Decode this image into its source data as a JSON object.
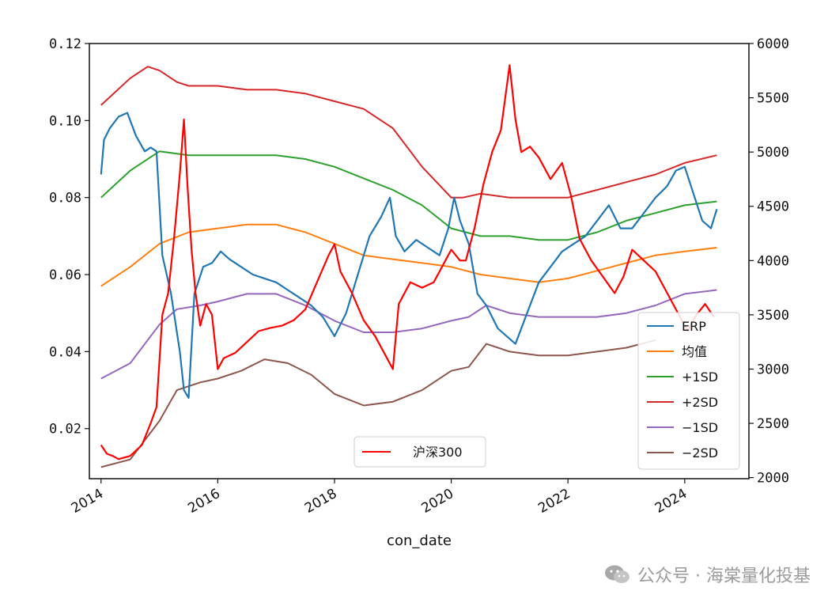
{
  "chart_data": {
    "type": "line",
    "xlabel": "con_date",
    "x_ticks": [
      "2014",
      "2016",
      "2018",
      "2020",
      "2022",
      "2024"
    ],
    "x_range": [
      2013.8,
      2025.1
    ],
    "y_left": {
      "range": [
        0.007,
        0.12
      ],
      "ticks": [
        "0.12",
        "0.10",
        "0.08",
        "0.06",
        "0.04",
        "0.02"
      ]
    },
    "y_right": {
      "range": [
        1990,
        6000
      ],
      "ticks": [
        "6000",
        "5500",
        "5000",
        "4500",
        "4000",
        "3500",
        "3000",
        "2500",
        "2000"
      ]
    },
    "series": [
      {
        "name": "ERP",
        "axis": "left",
        "color": "#1f77b4",
        "x": [
          2014.0,
          2014.05,
          2014.15,
          2014.3,
          2014.45,
          2014.6,
          2014.75,
          2014.85,
          2014.95,
          2015.05,
          2015.2,
          2015.35,
          2015.42,
          2015.5,
          2015.6,
          2015.75,
          2015.9,
          2016.05,
          2016.2,
          2016.4,
          2016.6,
          2016.8,
          2017.0,
          2017.2,
          2017.4,
          2017.6,
          2017.8,
          2018.0,
          2018.2,
          2018.4,
          2018.6,
          2018.8,
          2018.95,
          2019.05,
          2019.2,
          2019.4,
          2019.6,
          2019.8,
          2019.95,
          2020.05,
          2020.15,
          2020.3,
          2020.45,
          2020.6,
          2020.8,
          2020.95,
          2021.1,
          2021.3,
          2021.5,
          2021.7,
          2021.9,
          2022.1,
          2022.3,
          2022.5,
          2022.7,
          2022.9,
          2023.1,
          2023.3,
          2023.5,
          2023.7,
          2023.85,
          2024.0,
          2024.15,
          2024.3,
          2024.45,
          2024.55
        ],
        "values": [
          0.086,
          0.095,
          0.098,
          0.101,
          0.102,
          0.096,
          0.092,
          0.093,
          0.092,
          0.065,
          0.055,
          0.04,
          0.03,
          0.028,
          0.055,
          0.062,
          0.063,
          0.066,
          0.064,
          0.062,
          0.06,
          0.059,
          0.058,
          0.056,
          0.054,
          0.052,
          0.049,
          0.044,
          0.05,
          0.06,
          0.07,
          0.075,
          0.08,
          0.07,
          0.066,
          0.069,
          0.067,
          0.065,
          0.072,
          0.08,
          0.074,
          0.068,
          0.055,
          0.052,
          0.046,
          0.044,
          0.042,
          0.05,
          0.058,
          0.062,
          0.066,
          0.068,
          0.07,
          0.074,
          0.078,
          0.072,
          0.072,
          0.076,
          0.08,
          0.083,
          0.087,
          0.088,
          0.081,
          0.074,
          0.072,
          0.077
        ]
      },
      {
        "name": "均值",
        "axis": "left",
        "color": "#ff7f0e",
        "x": [
          2014.0,
          2014.5,
          2015.0,
          2015.5,
          2016.0,
          2016.5,
          2017.0,
          2017.5,
          2018.0,
          2018.5,
          2019.0,
          2019.5,
          2020.0,
          2020.5,
          2021.0,
          2021.5,
          2022.0,
          2022.5,
          2023.0,
          2023.5,
          2024.0,
          2024.55
        ],
        "values": [
          0.057,
          0.062,
          0.068,
          0.071,
          0.072,
          0.073,
          0.073,
          0.071,
          0.068,
          0.065,
          0.064,
          0.063,
          0.062,
          0.06,
          0.059,
          0.058,
          0.059,
          0.061,
          0.063,
          0.065,
          0.066,
          0.067
        ]
      },
      {
        "name": "+1SD",
        "axis": "left",
        "color": "#2ca02c",
        "x": [
          2014.0,
          2014.5,
          2015.0,
          2015.5,
          2016.0,
          2016.5,
          2017.0,
          2017.5,
          2018.0,
          2018.5,
          2019.0,
          2019.5,
          2020.0,
          2020.5,
          2021.0,
          2021.5,
          2022.0,
          2022.5,
          2023.0,
          2023.5,
          2024.0,
          2024.55
        ],
        "values": [
          0.08,
          0.087,
          0.092,
          0.091,
          0.091,
          0.091,
          0.091,
          0.09,
          0.088,
          0.085,
          0.082,
          0.078,
          0.072,
          0.07,
          0.07,
          0.069,
          0.069,
          0.071,
          0.074,
          0.076,
          0.078,
          0.079
        ]
      },
      {
        "name": "+2SD",
        "axis": "left",
        "color": "#d62728",
        "x": [
          2014.0,
          2014.5,
          2014.8,
          2015.0,
          2015.3,
          2015.5,
          2016.0,
          2016.5,
          2017.0,
          2017.5,
          2018.0,
          2018.5,
          2019.0,
          2019.5,
          2020.0,
          2020.2,
          2020.5,
          2021.0,
          2021.5,
          2022.0,
          2022.5,
          2023.0,
          2023.5,
          2024.0,
          2024.55
        ],
        "values": [
          0.104,
          0.111,
          0.114,
          0.113,
          0.11,
          0.109,
          0.109,
          0.108,
          0.108,
          0.107,
          0.105,
          0.103,
          0.098,
          0.088,
          0.08,
          0.08,
          0.081,
          0.08,
          0.08,
          0.08,
          0.082,
          0.084,
          0.086,
          0.089,
          0.091
        ]
      },
      {
        "name": "−1SD",
        "axis": "left",
        "color": "#9467bd",
        "x": [
          2014.0,
          2014.5,
          2015.0,
          2015.3,
          2015.7,
          2016.0,
          2016.5,
          2017.0,
          2017.5,
          2018.0,
          2018.5,
          2019.0,
          2019.5,
          2020.0,
          2020.3,
          2020.6,
          2021.0,
          2021.5,
          2022.0,
          2022.5,
          2023.0,
          2023.5,
          2024.0,
          2024.55
        ],
        "values": [
          0.033,
          0.037,
          0.047,
          0.051,
          0.052,
          0.053,
          0.055,
          0.055,
          0.052,
          0.048,
          0.045,
          0.045,
          0.046,
          0.048,
          0.049,
          0.052,
          0.05,
          0.049,
          0.049,
          0.049,
          0.05,
          0.052,
          0.055,
          0.056
        ]
      },
      {
        "name": "−2SD",
        "axis": "left",
        "color": "#8c564b",
        "x": [
          2014.0,
          2014.5,
          2015.0,
          2015.3,
          2015.7,
          2016.0,
          2016.4,
          2016.8,
          2017.2,
          2017.6,
          2018.0,
          2018.5,
          2019.0,
          2019.5,
          2020.0,
          2020.3,
          2020.6,
          2021.0,
          2021.5,
          2022.0,
          2022.5,
          2023.0,
          2023.5
        ],
        "values": [
          0.01,
          0.012,
          0.022,
          0.03,
          0.032,
          0.033,
          0.035,
          0.038,
          0.037,
          0.034,
          0.029,
          0.026,
          0.027,
          0.03,
          0.035,
          0.036,
          0.042,
          0.04,
          0.039,
          0.039,
          0.04,
          0.041,
          0.043
        ]
      },
      {
        "name": "沪深300",
        "axis": "right",
        "color": "#ff0000",
        "x": [
          2014.0,
          2014.1,
          2014.2,
          2014.3,
          2014.5,
          2014.7,
          2014.85,
          2014.95,
          2015.05,
          2015.15,
          2015.25,
          2015.35,
          2015.42,
          2015.48,
          2015.55,
          2015.62,
          2015.7,
          2015.8,
          2015.9,
          2016.0,
          2016.1,
          2016.3,
          2016.5,
          2016.7,
          2016.9,
          2017.1,
          2017.3,
          2017.5,
          2017.7,
          2017.9,
          2018.0,
          2018.1,
          2018.3,
          2018.5,
          2018.7,
          2018.9,
          2019.0,
          2019.1,
          2019.3,
          2019.5,
          2019.7,
          2019.9,
          2020.0,
          2020.15,
          2020.25,
          2020.4,
          2020.55,
          2020.7,
          2020.85,
          2021.0,
          2021.1,
          2021.2,
          2021.35,
          2021.5,
          2021.7,
          2021.9,
          2022.05,
          2022.2,
          2022.4,
          2022.6,
          2022.8,
          2022.95,
          2023.1,
          2023.3,
          2023.5,
          2023.7,
          2023.9,
          2024.05,
          2024.2,
          2024.35,
          2024.5
        ],
        "values": [
          2300,
          2220,
          2200,
          2170,
          2200,
          2300,
          2500,
          2650,
          3500,
          3700,
          4200,
          4800,
          5300,
          4700,
          4100,
          3700,
          3400,
          3600,
          3500,
          3000,
          3100,
          3150,
          3250,
          3350,
          3380,
          3400,
          3450,
          3550,
          3800,
          4050,
          4150,
          3900,
          3700,
          3450,
          3300,
          3100,
          3000,
          3600,
          3800,
          3750,
          3800,
          4000,
          4100,
          4000,
          4000,
          4300,
          4700,
          5000,
          5200,
          5800,
          5300,
          5000,
          5050,
          4950,
          4750,
          4900,
          4600,
          4200,
          4000,
          3850,
          3700,
          3850,
          4100,
          4000,
          3900,
          3700,
          3500,
          3350,
          3500,
          3600,
          3480
        ]
      }
    ],
    "legends": [
      {
        "placement": "bottom-right",
        "entries": [
          "ERP",
          "均值",
          "+1SD",
          "+2SD",
          "−1SD",
          "−2SD"
        ]
      },
      {
        "placement": "bottom-center",
        "entries": [
          "沪深300"
        ]
      }
    ]
  },
  "watermark": {
    "text": "公众号 · 海棠量化投基",
    "icon": "wechat-icon"
  }
}
